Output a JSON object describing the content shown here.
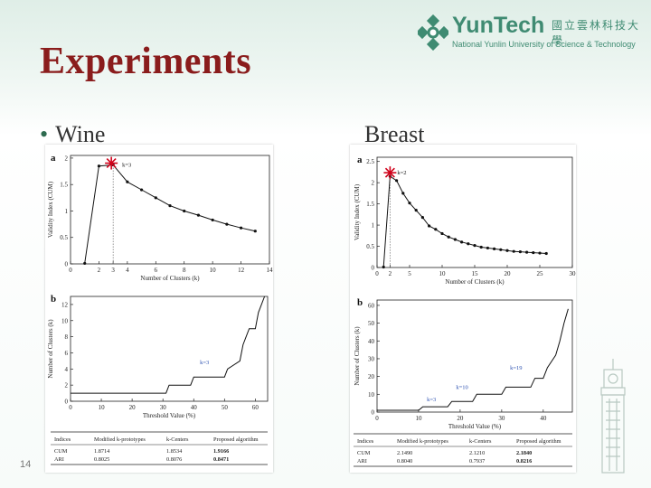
{
  "slide": {
    "title": "Experiments",
    "bullet_left": "Wine",
    "label_right": "Breast",
    "page_number": "14"
  },
  "logo": {
    "name": "YunTech",
    "chinese": "國立雲林科技大學",
    "subtitle": "National Yunlin University of Science & Technology",
    "color": "#3f8b72"
  },
  "colors": {
    "title": "#8a1c1c",
    "accent": "#3f8b72",
    "star": "#d0021b"
  },
  "chart_data": [
    {
      "id": "wine-a",
      "panel": "a",
      "type": "line",
      "xlabel": "Number of Clusters (k)",
      "ylabel": "Validity Index (CUM)",
      "x_ticks": [
        "0",
        "2",
        "3",
        "4",
        "6",
        "8",
        "10",
        "12",
        "14"
      ],
      "y_ticks": [
        "0",
        "0.5",
        "1",
        "1.5",
        "2"
      ],
      "xlim": [
        0,
        14
      ],
      "ylim": [
        0,
        2.05
      ],
      "annotation": "k=3",
      "x": [
        1,
        2,
        3,
        4,
        5,
        6,
        7,
        8,
        9,
        10,
        11,
        12,
        13
      ],
      "values": [
        0.01,
        1.85,
        1.87,
        1.55,
        1.4,
        1.25,
        1.1,
        1.0,
        0.92,
        0.83,
        0.75,
        0.68,
        0.62
      ]
    },
    {
      "id": "wine-b",
      "panel": "b",
      "type": "line",
      "xlabel": "Threshold Value (%)",
      "ylabel": "Number of Clusters (k)",
      "x_ticks": [
        "0",
        "10",
        "20",
        "30",
        "40",
        "50",
        "60"
      ],
      "y_ticks": [
        "0",
        "2",
        "4",
        "6",
        "8",
        "10",
        "12"
      ],
      "xlim": [
        0,
        64
      ],
      "ylim": [
        0,
        13
      ],
      "annotation": "k=3",
      "x": [
        0,
        2,
        31,
        32,
        39,
        40,
        50,
        51,
        55,
        56,
        57,
        58,
        60,
        61,
        62,
        63
      ],
      "values": [
        1,
        1,
        1,
        2,
        2,
        3,
        3,
        4,
        5,
        7,
        8,
        9,
        9,
        11,
        12,
        13
      ]
    },
    {
      "id": "wine-table",
      "type": "table",
      "columns": [
        "Indices",
        "Modified k-prototypes",
        "k-Centers",
        "Proposed algorithm"
      ],
      "rows": [
        [
          "CUM",
          "1.8714",
          "1.8534",
          "1.9166"
        ],
        [
          "ARI",
          "0.8025",
          "0.8076",
          "0.8471"
        ]
      ]
    },
    {
      "id": "breast-a",
      "panel": "a",
      "type": "line",
      "xlabel": "Number of Clusters (k)",
      "ylabel": "Validity Index (CUM)",
      "x_ticks": [
        "0",
        "2",
        "5",
        "10",
        "15",
        "20",
        "25",
        "30"
      ],
      "y_ticks": [
        "0",
        "0.5",
        "1",
        "1.5",
        "2",
        "2.5"
      ],
      "xlim": [
        0,
        30
      ],
      "ylim": [
        0,
        2.6
      ],
      "annotation": "k=2",
      "x": [
        1,
        2,
        3,
        4,
        5,
        6,
        7,
        8,
        9,
        10,
        11,
        12,
        13,
        14,
        15,
        16,
        17,
        18,
        19,
        20,
        21,
        22,
        23,
        24,
        25,
        26
      ],
      "values": [
        0.01,
        2.15,
        2.05,
        1.75,
        1.52,
        1.35,
        1.18,
        0.98,
        0.9,
        0.8,
        0.72,
        0.66,
        0.6,
        0.56,
        0.52,
        0.48,
        0.46,
        0.44,
        0.42,
        0.4,
        0.38,
        0.37,
        0.36,
        0.35,
        0.34,
        0.33
      ]
    },
    {
      "id": "breast-b",
      "panel": "b",
      "type": "line",
      "xlabel": "Threshold Value (%)",
      "ylabel": "Number of Clusters (k)",
      "x_ticks": [
        "0",
        "10",
        "20",
        "30",
        "40"
      ],
      "y_ticks": [
        "0",
        "10",
        "20",
        "30",
        "40",
        "50",
        "60"
      ],
      "xlim": [
        0,
        47
      ],
      "ylim": [
        0,
        63
      ],
      "annotation_1": "k=3",
      "annotation_2": "k=10",
      "annotation_3": "k=19",
      "x": [
        0,
        10,
        11,
        17,
        18,
        23,
        24,
        30,
        31,
        37,
        38,
        40,
        41,
        43,
        44,
        45,
        46
      ],
      "values": [
        1,
        1,
        3,
        3,
        6,
        6,
        10,
        10,
        14,
        14,
        19,
        19,
        25,
        32,
        40,
        50,
        58
      ]
    },
    {
      "id": "breast-table",
      "type": "table",
      "columns": [
        "Indices",
        "Modified k-prototypes",
        "k-Centers",
        "Proposed algorithm"
      ],
      "rows": [
        [
          "CUM",
          "2.1490",
          "2.1210",
          "2.1840"
        ],
        [
          "ARI",
          "0.8040",
          "0.7937",
          "0.8216"
        ]
      ]
    }
  ]
}
